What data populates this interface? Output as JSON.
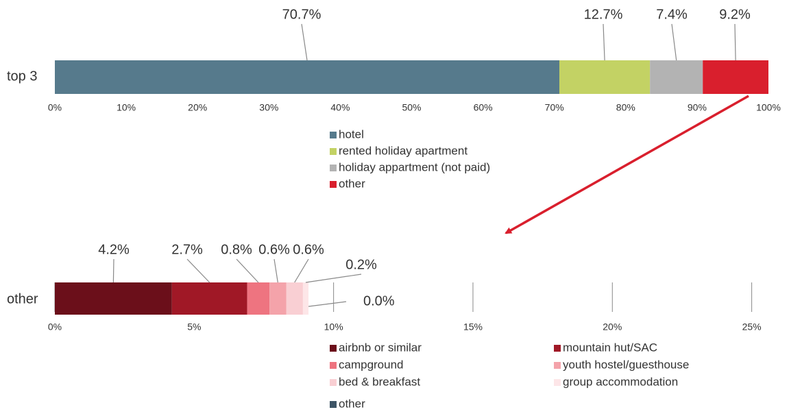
{
  "chart_data": [
    {
      "type": "stacked_bar_horizontal",
      "categories": [
        "top 3"
      ],
      "series": [
        {
          "name": "hotel",
          "color": "#567a8c",
          "values": [
            70.7
          ],
          "value_labels": [
            "70.7%"
          ]
        },
        {
          "name": "rented holiday apartment",
          "color": "#c3d264",
          "values": [
            12.7
          ],
          "value_labels": [
            "12.7%"
          ]
        },
        {
          "name": "holiday appartment (not paid)",
          "color": "#b3b3b3",
          "values": [
            7.4
          ],
          "value_labels": [
            "7.4%"
          ]
        },
        {
          "name": "other",
          "color": "#d91f2d",
          "values": [
            9.2
          ],
          "value_labels": [
            "9.2%"
          ]
        }
      ],
      "xlim": [
        0,
        100
      ],
      "xticks": [
        {
          "value": 0,
          "label": "0%"
        },
        {
          "value": 10,
          "label": "10%"
        },
        {
          "value": 20,
          "label": "20%"
        },
        {
          "value": 30,
          "label": "30%"
        },
        {
          "value": 40,
          "label": "40%"
        },
        {
          "value": 50,
          "label": "50%"
        },
        {
          "value": 60,
          "label": "60%"
        },
        {
          "value": 70,
          "label": "70%"
        },
        {
          "value": 80,
          "label": "80%"
        },
        {
          "value": 90,
          "label": "90%"
        },
        {
          "value": 100,
          "label": "100%"
        }
      ],
      "grid": false
    },
    {
      "type": "stacked_bar_horizontal",
      "categories": [
        "other"
      ],
      "series": [
        {
          "name": "airbnb or similar",
          "color": "#6b0f1a",
          "values": [
            4.2
          ],
          "value_labels": [
            "4.2%"
          ]
        },
        {
          "name": "mountain hut/SAC",
          "color": "#a01826",
          "values": [
            2.7
          ],
          "value_labels": [
            "2.7%"
          ]
        },
        {
          "name": "campground",
          "color": "#ee7480",
          "values": [
            0.8
          ],
          "value_labels": [
            "0.8%"
          ]
        },
        {
          "name": "youth hostel/guesthouse",
          "color": "#f4a3aa",
          "values": [
            0.6
          ],
          "value_labels": [
            "0.6%"
          ]
        },
        {
          "name": "bed & breakfast",
          "color": "#f9cfd3",
          "values": [
            0.6
          ],
          "value_labels": [
            "0.6%"
          ]
        },
        {
          "name": "group accommodation",
          "color": "#fde6e8",
          "values": [
            0.2
          ],
          "value_labels": [
            "0.2%"
          ]
        },
        {
          "name": "other",
          "color": "#3d5566",
          "values": [
            0.0
          ],
          "value_labels": [
            "0.0%"
          ]
        }
      ],
      "xlim": [
        0,
        25.6
      ],
      "xticks": [
        {
          "value": 0,
          "label": "0%"
        },
        {
          "value": 5,
          "label": "5%"
        },
        {
          "value": 10,
          "label": "10%"
        },
        {
          "value": 15,
          "label": "15%"
        },
        {
          "value": 20,
          "label": "20%"
        },
        {
          "value": 25,
          "label": "25%"
        }
      ],
      "grid": true
    }
  ]
}
